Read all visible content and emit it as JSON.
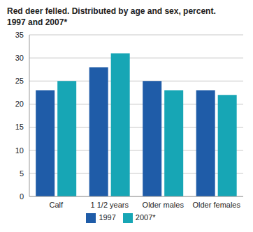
{
  "chart_data": {
    "type": "bar",
    "title": "Red deer felled. Distributed by age and sex, percent. 1997 and 2007*",
    "categories": [
      "Calf",
      "1 1/2 years",
      "Older males",
      "Older females"
    ],
    "series": [
      {
        "name": "1997",
        "color": "#1f5ca8",
        "values": [
          23,
          28,
          25,
          23
        ]
      },
      {
        "name": "2007*",
        "color": "#17a6b5",
        "values": [
          25,
          31,
          23,
          22
        ]
      }
    ],
    "ylim": [
      0,
      35
    ],
    "yticks": [
      0,
      5,
      10,
      15,
      20,
      25,
      30,
      35
    ],
    "grid": true,
    "legend": "bottom"
  }
}
